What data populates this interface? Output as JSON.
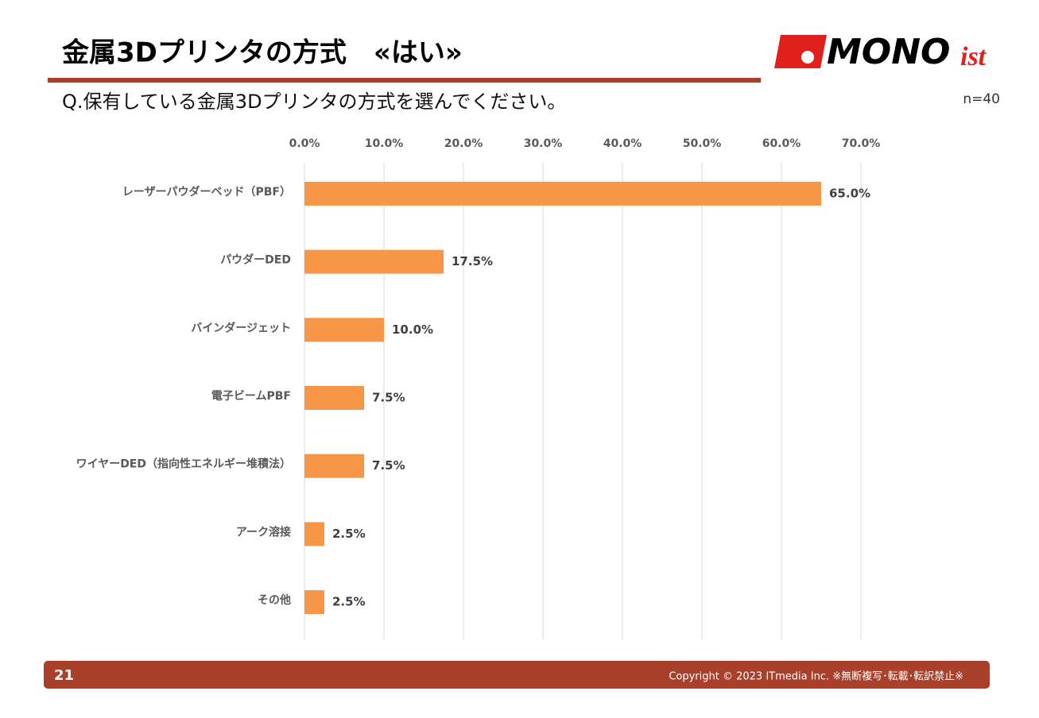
{
  "header": {
    "title": "金属3Dプリンタの方式　«はい»",
    "logo_main": "MONO",
    "logo_sub": "ist"
  },
  "question": "Q.保有している金属3Dプリンタの方式を選んでください。",
  "sample": "n=40",
  "footer": {
    "page": "21",
    "copyright": "Copyright © 2023 ITmedia Inc.  ※無断複写･転載･転訳禁止※"
  },
  "chart_data": {
    "type": "hbar",
    "categories": [
      "レーザーパウダーベッド（PBF）",
      "パウダーDED",
      "バインダージェット",
      "電子ビームPBF",
      "ワイヤーDED（指向性エネルギー堆積法）",
      "アーク溶接",
      "その他"
    ],
    "values": [
      65.0,
      17.5,
      10.0,
      7.5,
      7.5,
      2.5,
      2.5
    ],
    "value_labels": [
      "65.0%",
      "17.5%",
      "10.0%",
      "7.5%",
      "7.5%",
      "2.5%",
      "2.5%"
    ],
    "color": "#f79646",
    "xlim": [
      0,
      70
    ],
    "xticks": [
      {
        "value": 0,
        "label": "0.0%"
      },
      {
        "value": 10,
        "label": "10.0%"
      },
      {
        "value": 20,
        "label": "20.0%"
      },
      {
        "value": 30,
        "label": "30.0%"
      },
      {
        "value": 40,
        "label": "40.0%"
      },
      {
        "value": 50,
        "label": "50.0%"
      },
      {
        "value": 60,
        "label": "60.0%"
      },
      {
        "value": 70,
        "label": "70.0%"
      }
    ],
    "grid": true
  }
}
